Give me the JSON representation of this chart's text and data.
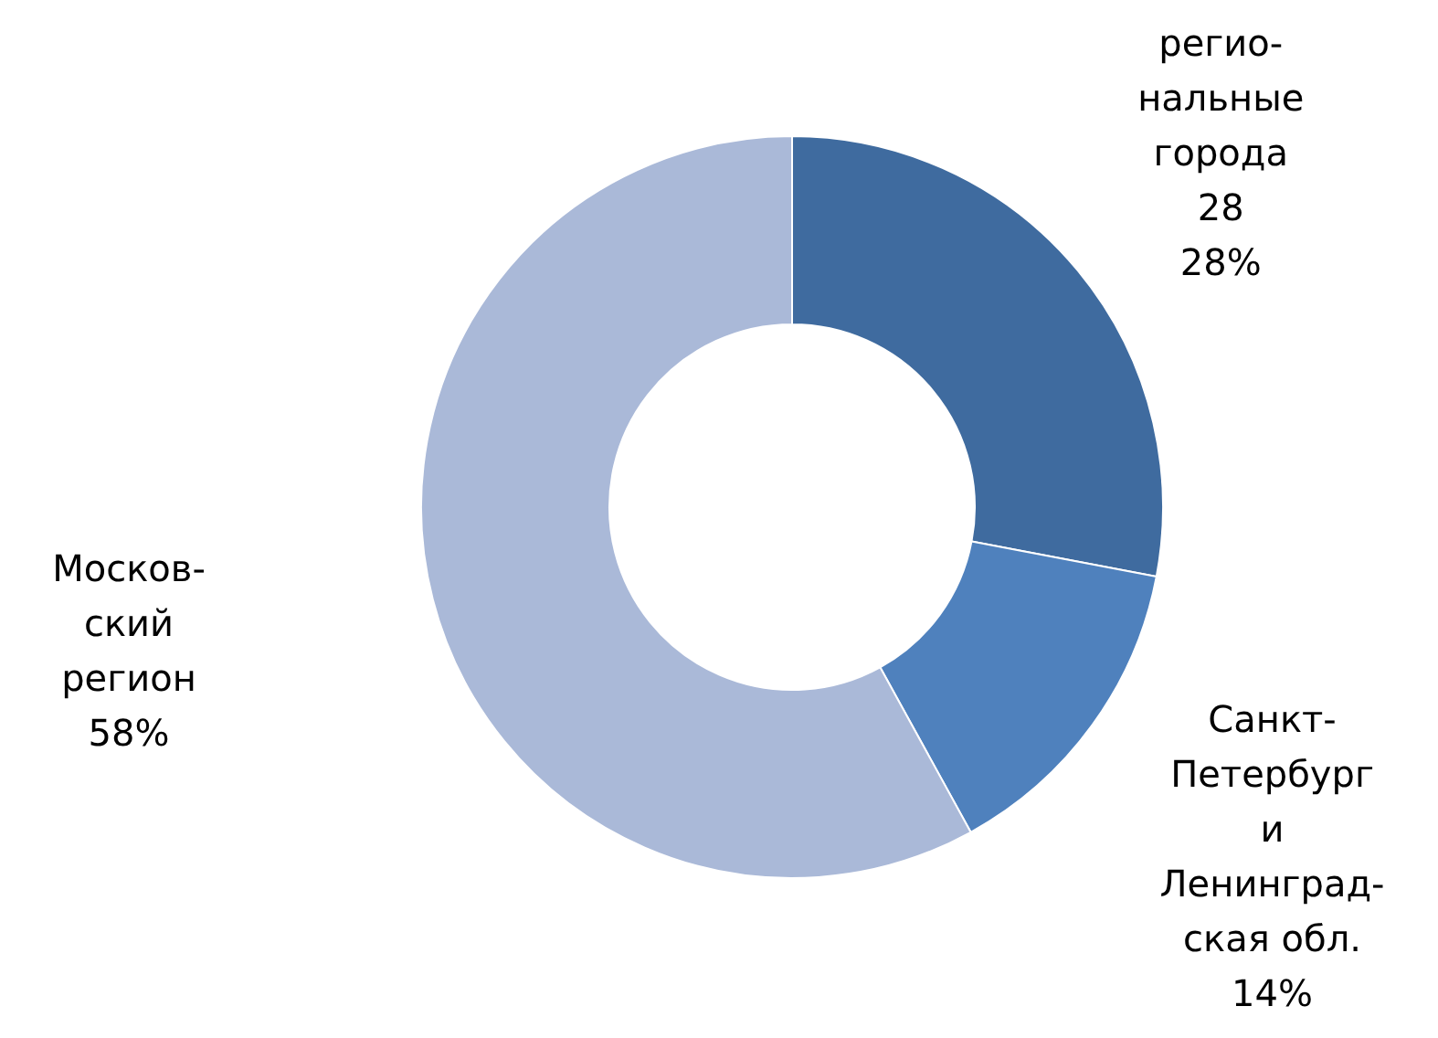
{
  "chart_data": {
    "type": "donut",
    "categories": [
      "регио-\nнальные\nгорода\n28",
      "Санкт-\nПетербург\nи\nЛенинград-\nская обл.",
      "Москов-\nский\nрегион"
    ],
    "values": [
      28,
      14,
      58
    ],
    "colors": [
      "#3f6b9f",
      "#4f81bd",
      "#aab9d8"
    ],
    "value_labels": [
      "28%",
      "14%",
      "58%"
    ],
    "legend": false
  }
}
